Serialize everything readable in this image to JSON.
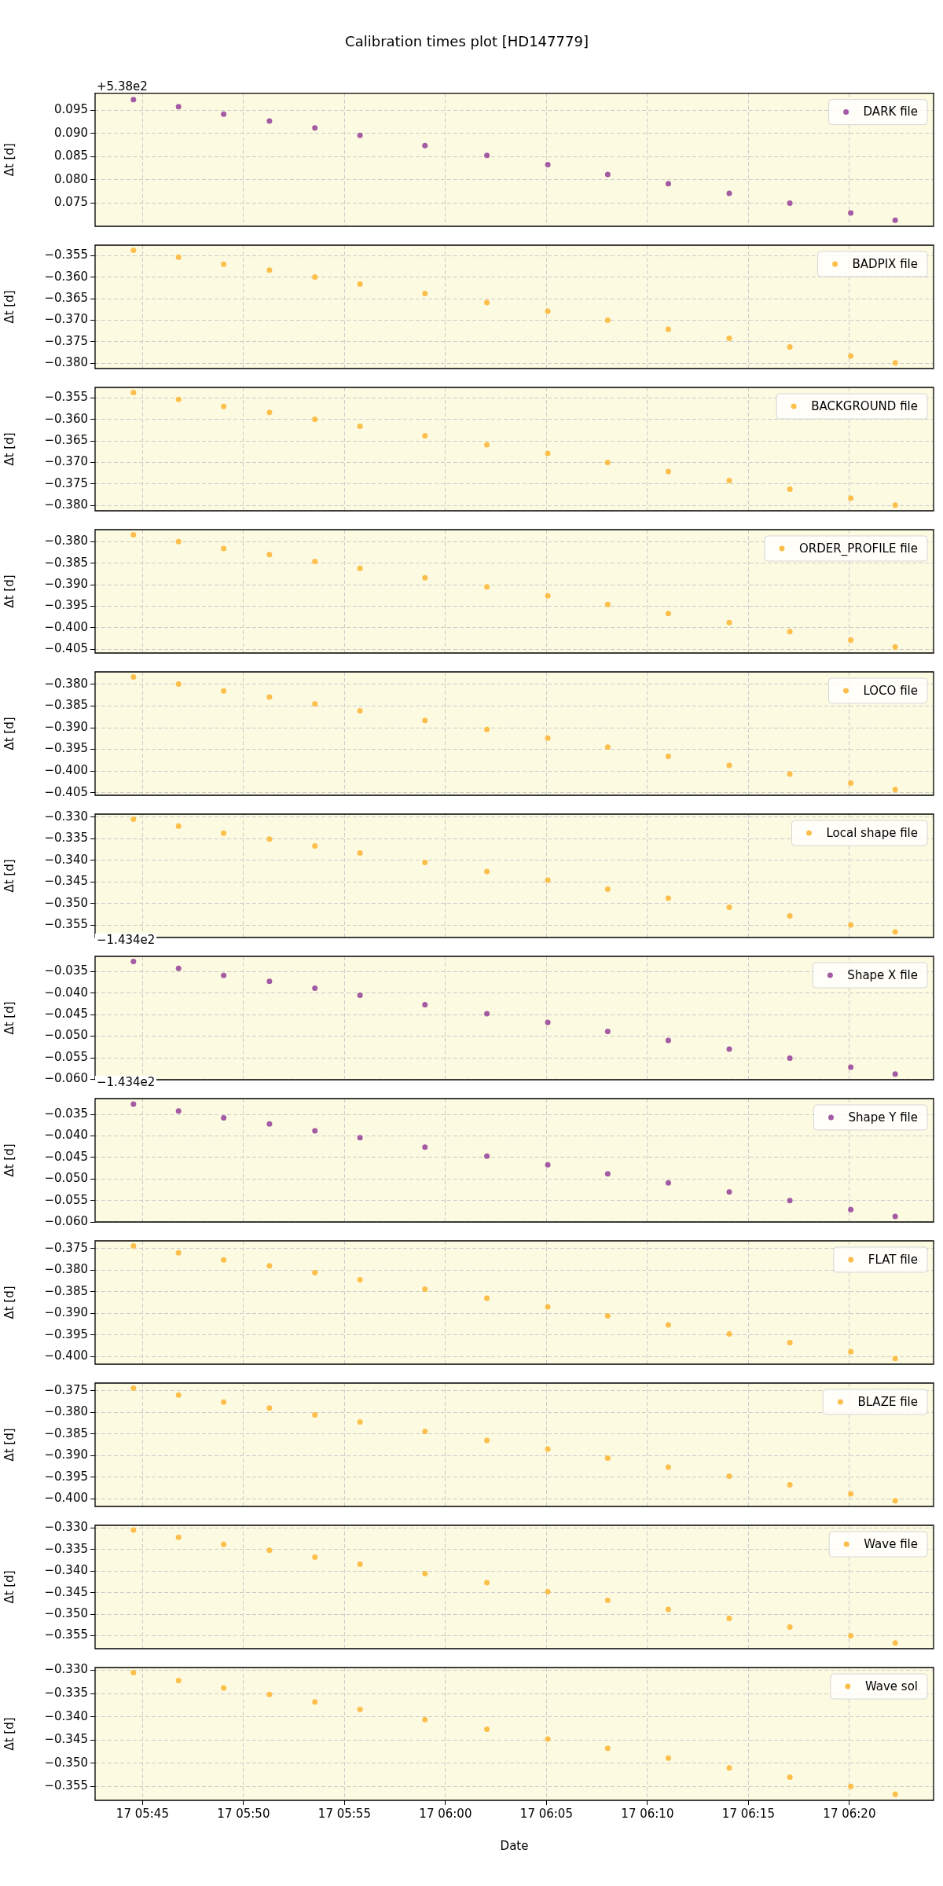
{
  "chart_data": [
    {
      "type": "scatter",
      "title": "Calibration times plot [HD147779]",
      "ylabel": "Δt [d]",
      "annotations": [
        "+5.38e2"
      ],
      "x": [
        "--01-17T05:44:33",
        "--01-17T05:46:47",
        "--01-17T05:49:01",
        "--01-17T05:51:17",
        "--01-17T05:53:32",
        "--01-17T05:55:46",
        "--01-17T05:58:59",
        "--01-17T06:02:03",
        "--01-17T06:05:04",
        "--01-17T06:08:02",
        "--01-17T06:11:02",
        "--01-17T06:14:03",
        "--01-17T06:17:03",
        "--01-17T06:20:04",
        "--01-17T06:22:16"
      ],
      "series": [
        {
          "name": "DARK file",
          "color": "#a35ba3",
          "values": [
            0.0973,
            0.0958,
            0.0942,
            0.0927,
            0.0912,
            0.0896,
            0.0874,
            0.0853,
            0.0833,
            0.0812,
            0.0792,
            0.0771,
            0.075,
            0.0729,
            0.0713
          ]
        }
      ],
      "xlim": [
        "--01-17T05:42:39",
        "--01-17T06:24:10"
      ],
      "xticks": [
        {
          "value": "--01-17T05:45",
          "label": null
        },
        {
          "value": "--01-17T05:50",
          "label": null
        },
        {
          "value": "--01-17T05:55",
          "label": null
        },
        {
          "value": "--01-17T06:00",
          "label": null
        },
        {
          "value": "--01-17T06:05",
          "label": null
        },
        {
          "value": "--01-17T06:10",
          "label": null
        },
        {
          "value": "--01-17T06:15",
          "label": null
        },
        {
          "value": "--01-17T06:20",
          "label": null
        }
      ],
      "ylim": [
        0.07,
        0.0987
      ],
      "yticks": [
        {
          "value": 0.075,
          "label": "0.075"
        },
        {
          "value": 0.08,
          "label": "0.080"
        },
        {
          "value": 0.085,
          "label": "0.085"
        },
        {
          "value": 0.09,
          "label": "0.090"
        },
        {
          "value": 0.095,
          "label": "0.095"
        }
      ],
      "grid": true,
      "legend": "top right",
      "marker": "circle",
      "tick_labels": "y"
    },
    {
      "type": "scatter",
      "ylabel": "Δt [d]",
      "x": [
        "--01-17T05:44:33",
        "--01-17T05:46:47",
        "--01-17T05:49:01",
        "--01-17T05:51:17",
        "--01-17T05:53:32",
        "--01-17T05:55:46",
        "--01-17T05:58:59",
        "--01-17T06:02:03",
        "--01-17T06:05:04",
        "--01-17T06:08:02",
        "--01-17T06:11:02",
        "--01-17T06:14:03",
        "--01-17T06:17:03",
        "--01-17T06:20:04",
        "--01-17T06:22:16"
      ],
      "series": [
        {
          "name": "BADPIX file",
          "color": "#fdbf4c",
          "values": [
            -0.3538,
            -0.3554,
            -0.357,
            -0.3584,
            -0.36,
            -0.3616,
            -0.3638,
            -0.3659,
            -0.3679,
            -0.37,
            -0.3721,
            -0.3742,
            -0.3762,
            -0.3783,
            -0.3799
          ]
        }
      ],
      "xlim": [
        "--01-17T05:42:39",
        "--01-17T06:24:10"
      ],
      "xticks": [
        {
          "value": "--01-17T05:45",
          "label": null
        },
        {
          "value": "--01-17T05:50",
          "label": null
        },
        {
          "value": "--01-17T05:55",
          "label": null
        },
        {
          "value": "--01-17T06:00",
          "label": null
        },
        {
          "value": "--01-17T06:05",
          "label": null
        },
        {
          "value": "--01-17T06:10",
          "label": null
        },
        {
          "value": "--01-17T06:15",
          "label": null
        },
        {
          "value": "--01-17T06:20",
          "label": null
        }
      ],
      "ylim": [
        -0.3812,
        -0.3526
      ],
      "yticks": [
        {
          "value": -0.38,
          "label": "−0.380"
        },
        {
          "value": -0.375,
          "label": "−0.375"
        },
        {
          "value": -0.37,
          "label": "−0.370"
        },
        {
          "value": -0.365,
          "label": "−0.365"
        },
        {
          "value": -0.36,
          "label": "−0.360"
        },
        {
          "value": -0.355,
          "label": "−0.355"
        }
      ],
      "grid": true,
      "legend": "top right",
      "marker": "circle",
      "tick_labels": "y"
    },
    {
      "type": "scatter",
      "ylabel": "Δt [d]",
      "x": [
        "--01-17T05:44:33",
        "--01-17T05:46:47",
        "--01-17T05:49:01",
        "--01-17T05:51:17",
        "--01-17T05:53:32",
        "--01-17T05:55:46",
        "--01-17T05:58:59",
        "--01-17T06:02:03",
        "--01-17T06:05:04",
        "--01-17T06:08:02",
        "--01-17T06:11:02",
        "--01-17T06:14:03",
        "--01-17T06:17:03",
        "--01-17T06:20:04",
        "--01-17T06:22:16"
      ],
      "series": [
        {
          "name": "BACKGROUND file",
          "color": "#fdbf4c",
          "values": [
            -0.3538,
            -0.3554,
            -0.357,
            -0.3584,
            -0.36,
            -0.3616,
            -0.3638,
            -0.3659,
            -0.3679,
            -0.37,
            -0.3721,
            -0.3742,
            -0.3762,
            -0.3783,
            -0.3799
          ]
        }
      ],
      "xlim": [
        "--01-17T05:42:39",
        "--01-17T06:24:10"
      ],
      "xticks": [
        {
          "value": "--01-17T05:45",
          "label": null
        },
        {
          "value": "--01-17T05:50",
          "label": null
        },
        {
          "value": "--01-17T05:55",
          "label": null
        },
        {
          "value": "--01-17T06:00",
          "label": null
        },
        {
          "value": "--01-17T06:05",
          "label": null
        },
        {
          "value": "--01-17T06:10",
          "label": null
        },
        {
          "value": "--01-17T06:15",
          "label": null
        },
        {
          "value": "--01-17T06:20",
          "label": null
        }
      ],
      "ylim": [
        -0.3812,
        -0.3526
      ],
      "yticks": [
        {
          "value": -0.38,
          "label": "−0.380"
        },
        {
          "value": -0.375,
          "label": "−0.375"
        },
        {
          "value": -0.37,
          "label": "−0.370"
        },
        {
          "value": -0.365,
          "label": "−0.365"
        },
        {
          "value": -0.36,
          "label": "−0.360"
        },
        {
          "value": -0.355,
          "label": "−0.355"
        }
      ],
      "grid": true,
      "legend": "top right",
      "marker": "circle",
      "tick_labels": "y"
    },
    {
      "type": "scatter",
      "ylabel": "Δt [d]",
      "x": [
        "--01-17T05:44:33",
        "--01-17T05:46:47",
        "--01-17T05:49:01",
        "--01-17T05:51:17",
        "--01-17T05:53:32",
        "--01-17T05:55:46",
        "--01-17T05:58:59",
        "--01-17T06:02:03",
        "--01-17T06:05:04",
        "--01-17T06:08:02",
        "--01-17T06:11:02",
        "--01-17T06:14:03",
        "--01-17T06:17:03",
        "--01-17T06:20:04",
        "--01-17T06:22:16"
      ],
      "series": [
        {
          "name": "ORDER_PROFILE file",
          "color": "#fdbf4c",
          "values": [
            -0.3784,
            -0.38,
            -0.3816,
            -0.383,
            -0.3846,
            -0.3862,
            -0.3884,
            -0.3905,
            -0.3926,
            -0.3946,
            -0.3967,
            -0.3988,
            -0.4009,
            -0.4029,
            -0.4045
          ]
        }
      ],
      "xlim": [
        "--01-17T05:42:39",
        "--01-17T06:24:10"
      ],
      "xticks": [
        {
          "value": "--01-17T05:45",
          "label": null
        },
        {
          "value": "--01-17T05:50",
          "label": null
        },
        {
          "value": "--01-17T05:55",
          "label": null
        },
        {
          "value": "--01-17T06:00",
          "label": null
        },
        {
          "value": "--01-17T06:05",
          "label": null
        },
        {
          "value": "--01-17T06:10",
          "label": null
        },
        {
          "value": "--01-17T06:15",
          "label": null
        },
        {
          "value": "--01-17T06:20",
          "label": null
        }
      ],
      "ylim": [
        -0.4059,
        -0.3772
      ],
      "yticks": [
        {
          "value": -0.405,
          "label": "−0.405"
        },
        {
          "value": -0.4,
          "label": "−0.400"
        },
        {
          "value": -0.395,
          "label": "−0.395"
        },
        {
          "value": -0.39,
          "label": "−0.390"
        },
        {
          "value": -0.385,
          "label": "−0.385"
        },
        {
          "value": -0.38,
          "label": "−0.380"
        }
      ],
      "grid": true,
      "legend": "top right",
      "marker": "circle",
      "tick_labels": "y"
    },
    {
      "type": "scatter",
      "ylabel": "Δt [d]",
      "x": [
        "--01-17T05:44:33",
        "--01-17T05:46:47",
        "--01-17T05:49:01",
        "--01-17T05:51:17",
        "--01-17T05:53:32",
        "--01-17T05:55:46",
        "--01-17T05:58:59",
        "--01-17T06:02:03",
        "--01-17T06:05:04",
        "--01-17T06:08:02",
        "--01-17T06:11:02",
        "--01-17T06:14:03",
        "--01-17T06:17:03",
        "--01-17T06:20:04",
        "--01-17T06:22:16"
      ],
      "series": [
        {
          "name": "LOCO file",
          "color": "#fdbf4c",
          "values": [
            -0.3783,
            -0.3799,
            -0.3815,
            -0.3829,
            -0.3845,
            -0.3861,
            -0.3883,
            -0.3904,
            -0.3924,
            -0.3945,
            -0.3966,
            -0.3987,
            -0.4007,
            -0.4028,
            -0.4043
          ]
        }
      ],
      "xlim": [
        "--01-17T05:42:39",
        "--01-17T06:24:10"
      ],
      "xticks": [
        {
          "value": "--01-17T05:45",
          "label": null
        },
        {
          "value": "--01-17T05:50",
          "label": null
        },
        {
          "value": "--01-17T05:55",
          "label": null
        },
        {
          "value": "--01-17T06:00",
          "label": null
        },
        {
          "value": "--01-17T06:05",
          "label": null
        },
        {
          "value": "--01-17T06:10",
          "label": null
        },
        {
          "value": "--01-17T06:15",
          "label": null
        },
        {
          "value": "--01-17T06:20",
          "label": null
        }
      ],
      "ylim": [
        -0.4056,
        -0.3771
      ],
      "yticks": [
        {
          "value": -0.405,
          "label": "−0.405"
        },
        {
          "value": -0.4,
          "label": "−0.400"
        },
        {
          "value": -0.395,
          "label": "−0.395"
        },
        {
          "value": -0.39,
          "label": "−0.390"
        },
        {
          "value": -0.385,
          "label": "−0.385"
        },
        {
          "value": -0.38,
          "label": "−0.380"
        }
      ],
      "grid": true,
      "legend": "top right",
      "marker": "circle",
      "tick_labels": "y"
    },
    {
      "type": "scatter",
      "ylabel": "Δt [d]",
      "x": [
        "--01-17T05:44:33",
        "--01-17T05:46:47",
        "--01-17T05:49:01",
        "--01-17T05:51:17",
        "--01-17T05:53:32",
        "--01-17T05:55:46",
        "--01-17T05:58:59",
        "--01-17T06:02:03",
        "--01-17T06:05:04",
        "--01-17T06:08:02",
        "--01-17T06:11:02",
        "--01-17T06:14:03",
        "--01-17T06:17:03",
        "--01-17T06:20:04",
        "--01-17T06:22:16"
      ],
      "series": [
        {
          "name": "Local shape file",
          "color": "#fdbf4c",
          "values": [
            -0.3305,
            -0.3321,
            -0.3337,
            -0.3351,
            -0.3367,
            -0.3383,
            -0.3405,
            -0.3426,
            -0.3446,
            -0.3467,
            -0.3488,
            -0.3509,
            -0.3529,
            -0.355,
            -0.3566
          ]
        }
      ],
      "xlim": [
        "--01-17T05:42:39",
        "--01-17T06:24:10"
      ],
      "xticks": [
        {
          "value": "--01-17T05:45",
          "label": null
        },
        {
          "value": "--01-17T05:50",
          "label": null
        },
        {
          "value": "--01-17T05:55",
          "label": null
        },
        {
          "value": "--01-17T06:00",
          "label": null
        },
        {
          "value": "--01-17T06:05",
          "label": null
        },
        {
          "value": "--01-17T06:10",
          "label": null
        },
        {
          "value": "--01-17T06:15",
          "label": null
        },
        {
          "value": "--01-17T06:20",
          "label": null
        }
      ],
      "ylim": [
        -0.3579,
        -0.3293
      ],
      "yticks": [
        {
          "value": -0.355,
          "label": "−0.355"
        },
        {
          "value": -0.35,
          "label": "−0.350"
        },
        {
          "value": -0.345,
          "label": "−0.345"
        },
        {
          "value": -0.34,
          "label": "−0.340"
        },
        {
          "value": -0.335,
          "label": "−0.335"
        },
        {
          "value": -0.33,
          "label": "−0.330"
        }
      ],
      "grid": true,
      "legend": "top right",
      "marker": "circle",
      "tick_labels": "y"
    },
    {
      "type": "scatter",
      "ylabel": "Δt [d]",
      "annotations": [
        "−1.434e2"
      ],
      "x": [
        "--01-17T05:44:33",
        "--01-17T05:46:47",
        "--01-17T05:49:01",
        "--01-17T05:51:17",
        "--01-17T05:53:32",
        "--01-17T05:55:46",
        "--01-17T05:58:59",
        "--01-17T06:02:03",
        "--01-17T06:05:04",
        "--01-17T06:08:02",
        "--01-17T06:11:02",
        "--01-17T06:14:03",
        "--01-17T06:17:03",
        "--01-17T06:20:04",
        "--01-17T06:22:16"
      ],
      "series": [
        {
          "name": "Shape X file",
          "color": "#a35ba3",
          "values": [
            -0.0327,
            -0.0343,
            -0.0359,
            -0.0373,
            -0.0389,
            -0.0405,
            -0.0427,
            -0.0448,
            -0.0468,
            -0.0489,
            -0.051,
            -0.053,
            -0.0551,
            -0.0572,
            -0.0588
          ]
        }
      ],
      "xlim": [
        "--01-17T05:42:39",
        "--01-17T06:24:10"
      ],
      "xticks": [
        {
          "value": "--01-17T05:45",
          "label": null
        },
        {
          "value": "--01-17T05:50",
          "label": null
        },
        {
          "value": "--01-17T05:55",
          "label": null
        },
        {
          "value": "--01-17T06:00",
          "label": null
        },
        {
          "value": "--01-17T06:05",
          "label": null
        },
        {
          "value": "--01-17T06:10",
          "label": null
        },
        {
          "value": "--01-17T06:15",
          "label": null
        },
        {
          "value": "--01-17T06:20",
          "label": null
        }
      ],
      "ylim": [
        -0.0601,
        -0.0315
      ],
      "yticks": [
        {
          "value": -0.06,
          "label": "−0.060"
        },
        {
          "value": -0.055,
          "label": "−0.055"
        },
        {
          "value": -0.05,
          "label": "−0.050"
        },
        {
          "value": -0.045,
          "label": "−0.045"
        },
        {
          "value": -0.04,
          "label": "−0.040"
        },
        {
          "value": -0.035,
          "label": "−0.035"
        }
      ],
      "grid": true,
      "legend": "top right",
      "marker": "circle",
      "tick_labels": "y"
    },
    {
      "type": "scatter",
      "ylabel": "Δt [d]",
      "annotations": [
        "−1.434e2"
      ],
      "x": [
        "--01-17T05:44:33",
        "--01-17T05:46:47",
        "--01-17T05:49:01",
        "--01-17T05:51:17",
        "--01-17T05:53:32",
        "--01-17T05:55:46",
        "--01-17T05:58:59",
        "--01-17T06:02:03",
        "--01-17T06:05:04",
        "--01-17T06:08:02",
        "--01-17T06:11:02",
        "--01-17T06:14:03",
        "--01-17T06:17:03",
        "--01-17T06:20:04",
        "--01-17T06:22:16"
      ],
      "series": [
        {
          "name": "Shape Y file",
          "color": "#a35ba3",
          "values": [
            -0.0326,
            -0.0342,
            -0.0358,
            -0.0372,
            -0.0388,
            -0.0404,
            -0.0426,
            -0.0447,
            -0.0467,
            -0.0488,
            -0.0509,
            -0.053,
            -0.055,
            -0.0571,
            -0.0587
          ]
        }
      ],
      "xlim": [
        "--01-17T05:42:39",
        "--01-17T06:24:10"
      ],
      "xticks": [
        {
          "value": "--01-17T05:45",
          "label": null
        },
        {
          "value": "--01-17T05:50",
          "label": null
        },
        {
          "value": "--01-17T05:55",
          "label": null
        },
        {
          "value": "--01-17T06:00",
          "label": null
        },
        {
          "value": "--01-17T06:05",
          "label": null
        },
        {
          "value": "--01-17T06:10",
          "label": null
        },
        {
          "value": "--01-17T06:15",
          "label": null
        },
        {
          "value": "--01-17T06:20",
          "label": null
        }
      ],
      "ylim": [
        -0.06,
        -0.0313
      ],
      "yticks": [
        {
          "value": -0.06,
          "label": "−0.060"
        },
        {
          "value": -0.055,
          "label": "−0.055"
        },
        {
          "value": -0.05,
          "label": "−0.050"
        },
        {
          "value": -0.045,
          "label": "−0.045"
        },
        {
          "value": -0.04,
          "label": "−0.040"
        },
        {
          "value": -0.035,
          "label": "−0.035"
        }
      ],
      "grid": true,
      "legend": "top right",
      "marker": "circle",
      "tick_labels": "y"
    },
    {
      "type": "scatter",
      "ylabel": "Δt [d]",
      "x": [
        "--01-17T05:44:33",
        "--01-17T05:46:47",
        "--01-17T05:49:01",
        "--01-17T05:51:17",
        "--01-17T05:53:32",
        "--01-17T05:55:46",
        "--01-17T05:58:59",
        "--01-17T06:02:03",
        "--01-17T06:05:04",
        "--01-17T06:08:02",
        "--01-17T06:11:02",
        "--01-17T06:14:03",
        "--01-17T06:17:03",
        "--01-17T06:20:04",
        "--01-17T06:22:16"
      ],
      "series": [
        {
          "name": "FLAT file",
          "color": "#fdbf4c",
          "values": [
            -0.3744,
            -0.376,
            -0.3776,
            -0.379,
            -0.3806,
            -0.3822,
            -0.3844,
            -0.3865,
            -0.3885,
            -0.3906,
            -0.3927,
            -0.3948,
            -0.3968,
            -0.3989,
            -0.4005
          ]
        }
      ],
      "xlim": [
        "--01-17T05:42:39",
        "--01-17T06:24:10"
      ],
      "xticks": [
        {
          "value": "--01-17T05:45",
          "label": null
        },
        {
          "value": "--01-17T05:50",
          "label": null
        },
        {
          "value": "--01-17T05:55",
          "label": null
        },
        {
          "value": "--01-17T06:00",
          "label": null
        },
        {
          "value": "--01-17T06:05",
          "label": null
        },
        {
          "value": "--01-17T06:10",
          "label": null
        },
        {
          "value": "--01-17T06:15",
          "label": null
        },
        {
          "value": "--01-17T06:20",
          "label": null
        }
      ],
      "ylim": [
        -0.4018,
        -0.3732
      ],
      "yticks": [
        {
          "value": -0.4,
          "label": "−0.400"
        },
        {
          "value": -0.395,
          "label": "−0.395"
        },
        {
          "value": -0.39,
          "label": "−0.390"
        },
        {
          "value": -0.385,
          "label": "−0.385"
        },
        {
          "value": -0.38,
          "label": "−0.380"
        },
        {
          "value": -0.375,
          "label": "−0.375"
        }
      ],
      "grid": true,
      "legend": "top right",
      "marker": "circle",
      "tick_labels": "y"
    },
    {
      "type": "scatter",
      "ylabel": "Δt [d]",
      "x": [
        "--01-17T05:44:33",
        "--01-17T05:46:47",
        "--01-17T05:49:01",
        "--01-17T05:51:17",
        "--01-17T05:53:32",
        "--01-17T05:55:46",
        "--01-17T05:58:59",
        "--01-17T06:02:03",
        "--01-17T06:05:04",
        "--01-17T06:08:02",
        "--01-17T06:11:02",
        "--01-17T06:14:03",
        "--01-17T06:17:03",
        "--01-17T06:20:04",
        "--01-17T06:22:16"
      ],
      "series": [
        {
          "name": "BLAZE file",
          "color": "#fdbf4c",
          "values": [
            -0.3744,
            -0.376,
            -0.3776,
            -0.379,
            -0.3806,
            -0.3822,
            -0.3844,
            -0.3865,
            -0.3885,
            -0.3906,
            -0.3927,
            -0.3948,
            -0.3968,
            -0.3989,
            -0.4005
          ]
        }
      ],
      "xlim": [
        "--01-17T05:42:39",
        "--01-17T06:24:10"
      ],
      "xticks": [
        {
          "value": "--01-17T05:45",
          "label": null
        },
        {
          "value": "--01-17T05:50",
          "label": null
        },
        {
          "value": "--01-17T05:55",
          "label": null
        },
        {
          "value": "--01-17T06:00",
          "label": null
        },
        {
          "value": "--01-17T06:05",
          "label": null
        },
        {
          "value": "--01-17T06:10",
          "label": null
        },
        {
          "value": "--01-17T06:15",
          "label": null
        },
        {
          "value": "--01-17T06:20",
          "label": null
        }
      ],
      "ylim": [
        -0.4018,
        -0.3732
      ],
      "yticks": [
        {
          "value": -0.4,
          "label": "−0.400"
        },
        {
          "value": -0.395,
          "label": "−0.395"
        },
        {
          "value": -0.39,
          "label": "−0.390"
        },
        {
          "value": -0.385,
          "label": "−0.385"
        },
        {
          "value": -0.38,
          "label": "−0.380"
        },
        {
          "value": -0.375,
          "label": "−0.375"
        }
      ],
      "grid": true,
      "legend": "top right",
      "marker": "circle",
      "tick_labels": "y"
    },
    {
      "type": "scatter",
      "ylabel": "Δt [d]",
      "x": [
        "--01-17T05:44:33",
        "--01-17T05:46:47",
        "--01-17T05:49:01",
        "--01-17T05:51:17",
        "--01-17T05:53:32",
        "--01-17T05:55:46",
        "--01-17T05:58:59",
        "--01-17T06:02:03",
        "--01-17T06:05:04",
        "--01-17T06:08:02",
        "--01-17T06:11:02",
        "--01-17T06:14:03",
        "--01-17T06:17:03",
        "--01-17T06:20:04",
        "--01-17T06:22:16"
      ],
      "series": [
        {
          "name": "Wave file",
          "color": "#fdbf4c",
          "values": [
            -0.3305,
            -0.3322,
            -0.3338,
            -0.3352,
            -0.3368,
            -0.3384,
            -0.3406,
            -0.3427,
            -0.3448,
            -0.3468,
            -0.3489,
            -0.351,
            -0.353,
            -0.355,
            -0.3567
          ]
        }
      ],
      "xlim": [
        "--01-17T05:42:39",
        "--01-17T06:24:10"
      ],
      "xticks": [
        {
          "value": "--01-17T05:45",
          "label": null
        },
        {
          "value": "--01-17T05:50",
          "label": null
        },
        {
          "value": "--01-17T05:55",
          "label": null
        },
        {
          "value": "--01-17T06:00",
          "label": null
        },
        {
          "value": "--01-17T06:05",
          "label": null
        },
        {
          "value": "--01-17T06:10",
          "label": null
        },
        {
          "value": "--01-17T06:15",
          "label": null
        },
        {
          "value": "--01-17T06:20",
          "label": null
        }
      ],
      "ylim": [
        -0.358,
        -0.3294
      ],
      "yticks": [
        {
          "value": -0.355,
          "label": "−0.355"
        },
        {
          "value": -0.35,
          "label": "−0.350"
        },
        {
          "value": -0.345,
          "label": "−0.345"
        },
        {
          "value": -0.34,
          "label": "−0.340"
        },
        {
          "value": -0.335,
          "label": "−0.335"
        },
        {
          "value": -0.33,
          "label": "−0.330"
        }
      ],
      "grid": true,
      "legend": "top right",
      "marker": "circle",
      "tick_labels": "y"
    },
    {
      "type": "scatter",
      "xlabel": "Date",
      "ylabel": "Δt [d]",
      "x": [
        "--01-17T05:44:33",
        "--01-17T05:46:47",
        "--01-17T05:49:01",
        "--01-17T05:51:17",
        "--01-17T05:53:32",
        "--01-17T05:55:46",
        "--01-17T05:58:59",
        "--01-17T06:02:03",
        "--01-17T06:05:04",
        "--01-17T06:08:02",
        "--01-17T06:11:02",
        "--01-17T06:14:03",
        "--01-17T06:17:03",
        "--01-17T06:20:04",
        "--01-17T06:22:16"
      ],
      "series": [
        {
          "name": "Wave sol",
          "color": "#fdbf4c",
          "values": [
            -0.3305,
            -0.3322,
            -0.3338,
            -0.3352,
            -0.3368,
            -0.3384,
            -0.3406,
            -0.3427,
            -0.3448,
            -0.3468,
            -0.3489,
            -0.351,
            -0.353,
            -0.355,
            -0.3567
          ]
        }
      ],
      "xlim": [
        "--01-17T05:42:39",
        "--01-17T06:24:10"
      ],
      "xticks": [
        {
          "value": "--01-17T05:45",
          "label": "17 05:45"
        },
        {
          "value": "--01-17T05:50",
          "label": "17 05:50"
        },
        {
          "value": "--01-17T05:55",
          "label": "17 05:55"
        },
        {
          "value": "--01-17T06:00",
          "label": "17 06:00"
        },
        {
          "value": "--01-17T06:05",
          "label": "17 06:05"
        },
        {
          "value": "--01-17T06:10",
          "label": "17 06:10"
        },
        {
          "value": "--01-17T06:15",
          "label": "17 06:15"
        },
        {
          "value": "--01-17T06:20",
          "label": "17 06:20"
        }
      ],
      "ylim": [
        -0.358,
        -0.3294
      ],
      "yticks": [
        {
          "value": -0.355,
          "label": "−0.355"
        },
        {
          "value": -0.35,
          "label": "−0.350"
        },
        {
          "value": -0.345,
          "label": "−0.345"
        },
        {
          "value": -0.34,
          "label": "−0.340"
        },
        {
          "value": -0.335,
          "label": "−0.335"
        },
        {
          "value": -0.33,
          "label": "−0.330"
        }
      ],
      "grid": true,
      "legend": "top right",
      "marker": "circle"
    }
  ]
}
